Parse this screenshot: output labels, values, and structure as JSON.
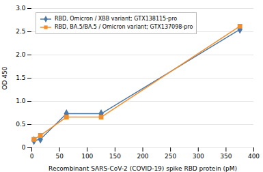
{
  "chart_data": {
    "type": "line",
    "xlabel": "Recombinant SARS-CoV-2 (COVID-19) spike RBD protein (pM)",
    "ylabel": "OD 450",
    "x": [
      3.9,
      15.6,
      62.5,
      125,
      375
    ],
    "series": [
      {
        "name": "RBD, Omicron / XBB variant; GTX138115-pro",
        "marker": "diamond",
        "values": [
          0.155,
          0.185,
          0.735,
          0.735,
          2.55
        ]
      },
      {
        "name": "RBD, BA.5/BA.5 / Omicron variant; GTX137098-pro",
        "marker": "square",
        "values": [
          0.18,
          0.265,
          0.66,
          0.66,
          2.62
        ]
      }
    ],
    "xlim": [
      0,
      400
    ],
    "ylim": [
      0,
      3
    ],
    "xticks": [
      0,
      50,
      100,
      150,
      200,
      250,
      300,
      350,
      400
    ],
    "yticks": [
      0,
      0.5,
      {
        "value": 1.0,
        "label": "1.0"
      },
      1.5,
      {
        "value": 2.0,
        "label": "2.0"
      },
      2.5,
      {
        "value": 3.0,
        "label": "3.0"
      }
    ],
    "grid": true,
    "legend": "upper left"
  }
}
